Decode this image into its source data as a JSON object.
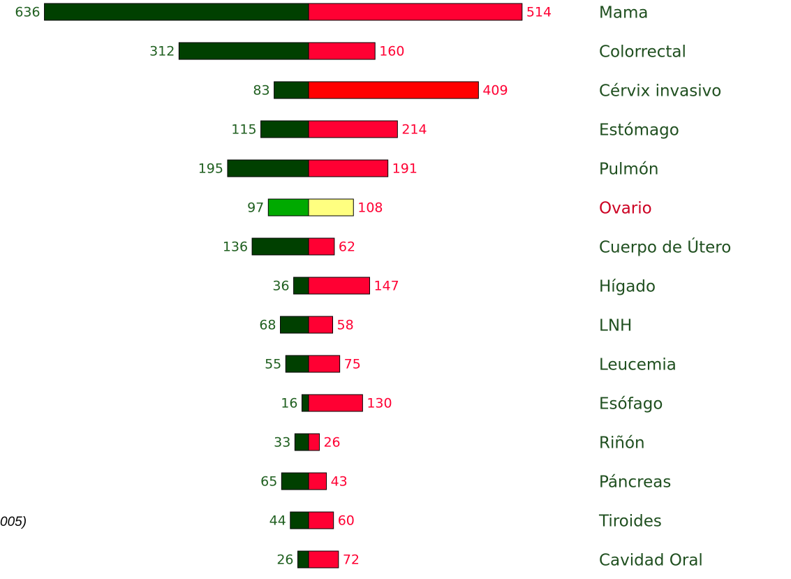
{
  "chart_data": {
    "type": "butterfly",
    "annotation": "005)",
    "categories": [
      "Mama",
      "Colorrectal",
      "Cérvix invasivo",
      "Estómago",
      "Pulmón",
      "Ovario",
      "Cuerpo de Útero",
      "Hígado",
      "LNH",
      "Leucemia",
      "Esófago",
      "Riñón",
      "Páncreas",
      "Tiroides",
      "Cavidad Oral"
    ],
    "category_colors": [
      "#1f4f1f",
      "#1f4f1f",
      "#1f4f1f",
      "#1f4f1f",
      "#1f4f1f",
      "#cc0022",
      "#1f4f1f",
      "#1f4f1f",
      "#1f4f1f",
      "#1f4f1f",
      "#1f4f1f",
      "#1f4f1f",
      "#1f4f1f",
      "#1f4f1f",
      "#1f4f1f"
    ],
    "series": [
      {
        "side": "left",
        "label_color": "#1f5f1f",
        "colors": [
          "#004000",
          "#004000",
          "#004000",
          "#004000",
          "#004000",
          "#00aa00",
          "#004000",
          "#004000",
          "#004000",
          "#004000",
          "#004000",
          "#004000",
          "#004000",
          "#004000",
          "#004000"
        ],
        "values": [
          636,
          312,
          83,
          115,
          195,
          97,
          136,
          36,
          68,
          55,
          16,
          33,
          65,
          44,
          26
        ]
      },
      {
        "side": "right",
        "label_color": "#ff0033",
        "colors": [
          "#ff0033",
          "#ff0033",
          "#ff0000",
          "#ff0033",
          "#ff0033",
          "#ffff80",
          "#ff0033",
          "#ff0033",
          "#ff0033",
          "#ff0033",
          "#ff0033",
          "#ff0033",
          "#ff0033",
          "#ff0033",
          "#ff0033"
        ],
        "values": [
          514,
          160,
          409,
          214,
          191,
          108,
          62,
          147,
          58,
          75,
          130,
          26,
          43,
          60,
          72
        ]
      }
    ]
  }
}
